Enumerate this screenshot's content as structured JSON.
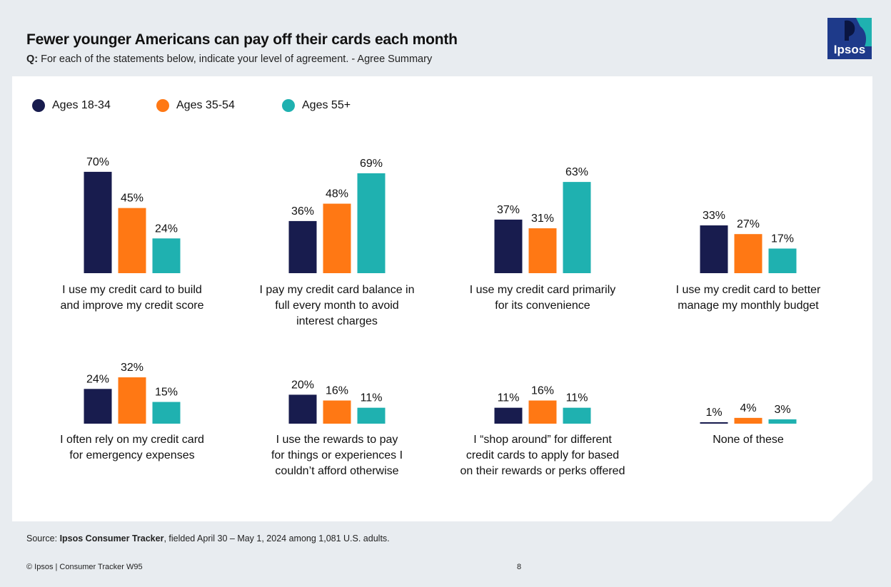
{
  "header": {
    "title": "Fewer younger Americans can pay off their cards each month",
    "question_prefix": "Q:",
    "question_text": " For each of the statements below, indicate your level of agreement. - Agree Summary"
  },
  "logo": {
    "text": "Ipsos",
    "bg_color": "#1e3a8a",
    "accent_color": "#1fb1b0"
  },
  "colors": {
    "age_18_34": "#181c4e",
    "age_35_54": "#ff7814",
    "age_55_plus": "#1fb1b0",
    "panel": "#ffffff",
    "page": "#e8ecf0"
  },
  "chart_data": {
    "type": "bar",
    "title": "Fewer younger Americans can pay off their cards each month",
    "subtitle": "Q: For each of the statements below, indicate your level of agreement. - Agree Summary",
    "ylim": [
      0,
      100
    ],
    "value_suffix": "%",
    "legend_position": "top-left",
    "series": [
      {
        "name": "Ages 18-34",
        "color": "#181c4e"
      },
      {
        "name": "Ages 35-54",
        "color": "#ff7814"
      },
      {
        "name": "Ages 55+",
        "color": "#1fb1b0"
      }
    ],
    "categories": [
      {
        "lines": [
          "I use my credit card to build",
          "and improve my credit score"
        ],
        "values": [
          70,
          45,
          24
        ]
      },
      {
        "lines": [
          "I pay my credit card balance in",
          "full every month to avoid",
          "interest charges"
        ],
        "values": [
          36,
          48,
          69
        ]
      },
      {
        "lines": [
          "I use my credit card primarily",
          "for its convenience"
        ],
        "values": [
          37,
          31,
          63
        ]
      },
      {
        "lines": [
          "I use my credit card to better",
          "manage my monthly budget"
        ],
        "values": [
          33,
          27,
          17
        ]
      },
      {
        "lines": [
          "I often rely on my credit card",
          "for emergency expenses"
        ],
        "values": [
          24,
          32,
          15
        ]
      },
      {
        "lines": [
          "I use the rewards to pay",
          "for things or experiences I",
          "couldn’t afford otherwise"
        ],
        "values": [
          20,
          16,
          11
        ]
      },
      {
        "lines": [
          "I “shop around” for different",
          "credit cards to apply for based",
          "on their rewards or perks offered"
        ],
        "values": [
          11,
          16,
          11
        ]
      },
      {
        "lines": [
          "None of these"
        ],
        "values": [
          1,
          4,
          3
        ]
      }
    ]
  },
  "footer": {
    "source_prefix": "Source: ",
    "source_bold": "Ipsos Consumer Tracker",
    "source_rest": ", fielded April 30 – May 1, 2024 among 1,081 U.S. adults.",
    "copyright": "© Ipsos | Consumer Tracker W95",
    "page_number": "8"
  }
}
